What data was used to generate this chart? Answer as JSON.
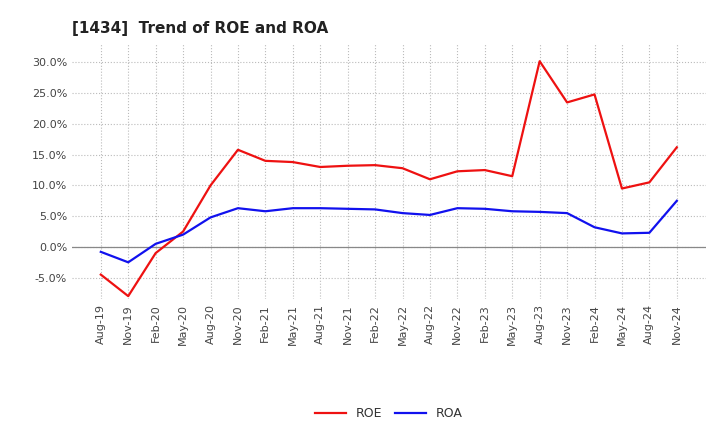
{
  "title": "[1434]  Trend of ROE and ROA",
  "labels": [
    "Aug-19",
    "Nov-19",
    "Feb-20",
    "May-20",
    "Aug-20",
    "Nov-20",
    "Feb-21",
    "May-21",
    "Aug-21",
    "Nov-21",
    "Feb-22",
    "May-22",
    "Aug-22",
    "Nov-22",
    "Feb-23",
    "May-23",
    "Aug-23",
    "Nov-23",
    "Feb-24",
    "May-24",
    "Aug-24",
    "Nov-24"
  ],
  "ROE": [
    -4.5,
    -8.0,
    -1.0,
    2.5,
    10.0,
    15.8,
    14.0,
    13.8,
    13.0,
    13.2,
    13.3,
    12.8,
    11.0,
    12.3,
    12.5,
    11.5,
    30.2,
    23.5,
    24.8,
    9.5,
    10.5,
    16.2
  ],
  "ROA": [
    -0.8,
    -2.5,
    0.5,
    2.0,
    4.8,
    6.3,
    5.8,
    6.3,
    6.3,
    6.2,
    6.1,
    5.5,
    5.2,
    6.3,
    6.2,
    5.8,
    5.7,
    5.5,
    3.2,
    2.2,
    2.3,
    7.5
  ],
  "roe_color": "#ee1111",
  "roa_color": "#1111ee",
  "ylim": [
    -8.5,
    33.0
  ],
  "yticks": [
    -5.0,
    0.0,
    5.0,
    10.0,
    15.0,
    20.0,
    25.0,
    30.0
  ],
  "background_color": "#ffffff",
  "grid_color": "#bbbbbb",
  "linewidth": 1.6,
  "title_fontsize": 11,
  "tick_fontsize": 8,
  "legend_fontsize": 9
}
